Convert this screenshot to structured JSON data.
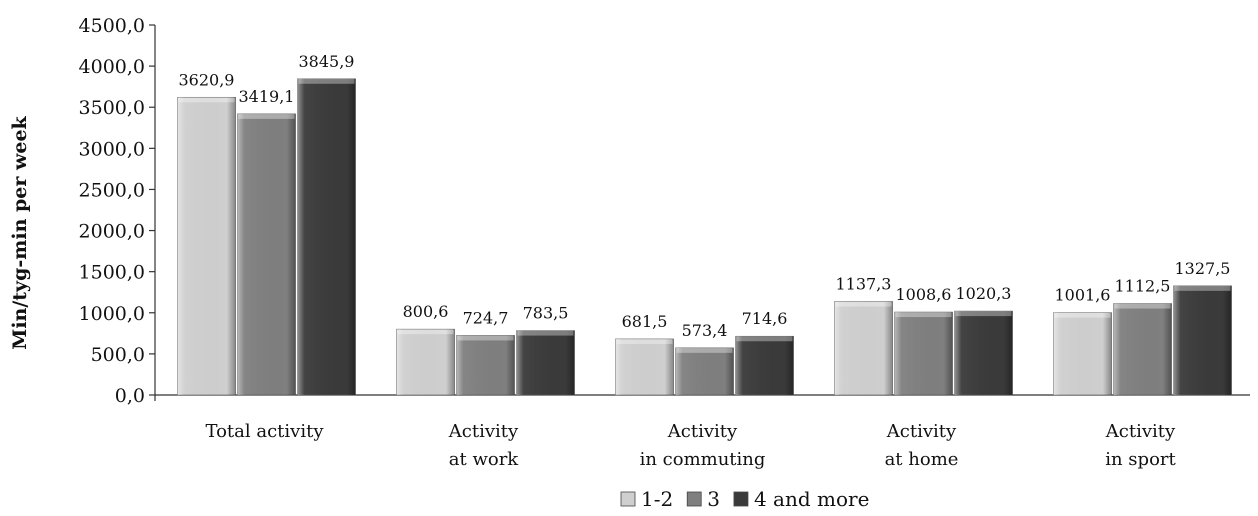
{
  "chart_data": {
    "type": "bar",
    "title": "",
    "xlabel": "",
    "ylabel": "Min/tyg-min per week",
    "ylim": [
      0,
      4500
    ],
    "yticks": [
      "0,0",
      "500,0",
      "1000,0",
      "1500,0",
      "2000,0",
      "2500,0",
      "3000,0",
      "3500,0",
      "4000,0",
      "4500,0"
    ],
    "categories": [
      [
        "Total activity"
      ],
      [
        "Activity",
        "at work"
      ],
      [
        "Activity",
        "in commuting"
      ],
      [
        "Activity",
        "at home"
      ],
      [
        "Activity",
        "in sport"
      ]
    ],
    "series": [
      {
        "name": "1-2",
        "values": [
          3620.9,
          800.6,
          681.5,
          1137.3,
          1001.6
        ],
        "labels": [
          "3620,9",
          "800,6",
          "681,5",
          "1137,3",
          "1001,6"
        ],
        "color": "#cfcfcf"
      },
      {
        "name": "3",
        "values": [
          3419.1,
          724.7,
          573.4,
          1008.6,
          1112.5
        ],
        "labels": [
          "3419,1",
          "724,7",
          "573,4",
          "1008,6",
          "1112,5"
        ],
        "color": "#7f7f7f"
      },
      {
        "name": "4 and more",
        "values": [
          3845.9,
          783.5,
          714.6,
          1020.3,
          1327.5
        ],
        "labels": [
          "3845,9",
          "783,5",
          "714,6",
          "1020,3",
          "1327,5"
        ],
        "color": "#3a3a3a"
      }
    ],
    "legend_position": "bottom",
    "grid": false,
    "bar_style": "3d-bevel"
  }
}
